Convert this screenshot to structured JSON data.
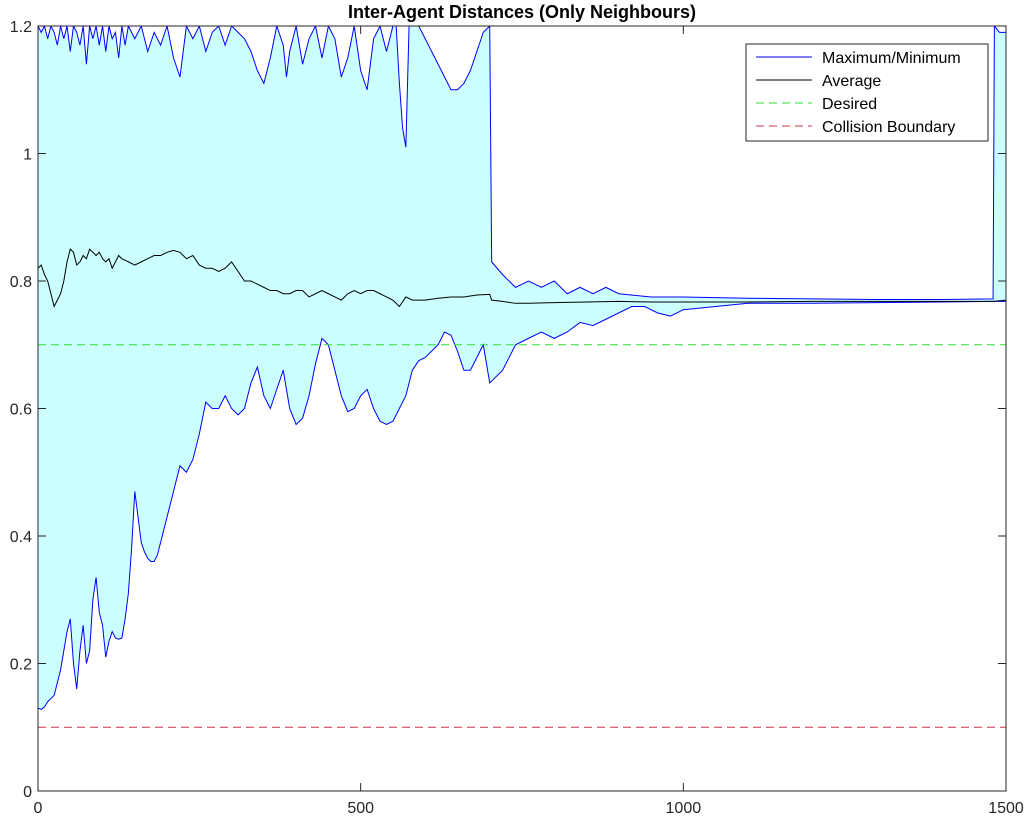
{
  "chart_data": {
    "type": "area",
    "title": "Inter-Agent Distances (Only Neighbours)",
    "xlabel": "",
    "ylabel": "",
    "xlim": [
      0,
      1500
    ],
    "ylim": [
      0,
      1.2
    ],
    "xticks": [
      0,
      500,
      1000,
      1500
    ],
    "yticks": [
      0,
      0.2,
      0.4,
      0.6,
      0.8,
      1,
      1.2
    ],
    "xtick_labels": [
      "0",
      "500",
      "1000",
      "1500"
    ],
    "ytick_labels": [
      "0",
      "0.2",
      "0.4",
      "0.6",
      "0.8",
      "1",
      "1.2"
    ],
    "grid": false,
    "legend_position": "top-right",
    "colors": {
      "band_fill": "#ccffff",
      "max_min": "#0000ff",
      "average": "#000000",
      "desired": "#33dd33",
      "collision": "#cc3344"
    },
    "series": [
      {
        "name": "Maximum/Minimum",
        "kind": "band",
        "upper": {
          "x": [
            0,
            5,
            10,
            15,
            20,
            25,
            30,
            35,
            40,
            45,
            50,
            55,
            60,
            65,
            70,
            75,
            80,
            85,
            90,
            95,
            100,
            105,
            110,
            115,
            120,
            125,
            130,
            135,
            140,
            150,
            160,
            170,
            180,
            190,
            200,
            210,
            220,
            230,
            240,
            250,
            260,
            270,
            280,
            290,
            300,
            310,
            320,
            330,
            340,
            350,
            360,
            370,
            380,
            385,
            390,
            400,
            410,
            420,
            430,
            440,
            450,
            460,
            470,
            480,
            490,
            500,
            510,
            520,
            530,
            540,
            550,
            555,
            560,
            565,
            570,
            575,
            580,
            590,
            600,
            610,
            620,
            630,
            640,
            650,
            660,
            670,
            680,
            690,
            700,
            703,
            720,
            740,
            760,
            780,
            800,
            820,
            840,
            860,
            880,
            900,
            950,
            1000,
            1050,
            1100,
            1200,
            1300,
            1400,
            1480,
            1482,
            1490,
            1500
          ],
          "y": [
            1.2,
            1.19,
            1.2,
            1.18,
            1.2,
            1.19,
            1.17,
            1.2,
            1.18,
            1.2,
            1.16,
            1.2,
            1.19,
            1.17,
            1.2,
            1.14,
            1.2,
            1.18,
            1.2,
            1.17,
            1.2,
            1.16,
            1.2,
            1.18,
            1.19,
            1.15,
            1.2,
            1.17,
            1.2,
            1.18,
            1.2,
            1.16,
            1.19,
            1.17,
            1.2,
            1.15,
            1.12,
            1.2,
            1.18,
            1.2,
            1.16,
            1.19,
            1.2,
            1.17,
            1.2,
            1.19,
            1.18,
            1.16,
            1.13,
            1.11,
            1.15,
            1.2,
            1.17,
            1.12,
            1.16,
            1.2,
            1.14,
            1.18,
            1.2,
            1.15,
            1.2,
            1.18,
            1.12,
            1.15,
            1.2,
            1.13,
            1.1,
            1.18,
            1.2,
            1.16,
            1.2,
            1.2,
            1.11,
            1.04,
            1.01,
            1.2,
            1.2,
            1.2,
            1.18,
            1.16,
            1.14,
            1.12,
            1.1,
            1.1,
            1.11,
            1.13,
            1.16,
            1.19,
            1.2,
            0.83,
            0.81,
            0.79,
            0.8,
            0.79,
            0.8,
            0.78,
            0.79,
            0.78,
            0.79,
            0.78,
            0.775,
            0.775,
            0.774,
            0.773,
            0.772,
            0.771,
            0.771,
            0.772,
            1.2,
            1.19,
            1.19
          ]
        },
        "lower": {
          "x": [
            0,
            5,
            10,
            15,
            20,
            25,
            30,
            35,
            40,
            45,
            50,
            55,
            60,
            65,
            70,
            75,
            80,
            85,
            90,
            95,
            100,
            105,
            110,
            115,
            120,
            125,
            130,
            135,
            140,
            145,
            150,
            155,
            160,
            165,
            170,
            175,
            180,
            185,
            190,
            195,
            200,
            210,
            220,
            230,
            240,
            250,
            260,
            270,
            280,
            290,
            300,
            310,
            320,
            330,
            340,
            350,
            360,
            370,
            380,
            390,
            400,
            410,
            420,
            430,
            440,
            450,
            460,
            470,
            480,
            490,
            500,
            510,
            520,
            530,
            540,
            550,
            560,
            570,
            580,
            590,
            600,
            610,
            620,
            630,
            640,
            650,
            660,
            670,
            680,
            690,
            700,
            720,
            740,
            760,
            780,
            800,
            820,
            840,
            860,
            880,
            900,
            920,
            940,
            960,
            980,
            1000,
            1050,
            1100,
            1200,
            1300,
            1400,
            1480,
            1500
          ],
          "y": [
            0.13,
            0.128,
            0.132,
            0.14,
            0.145,
            0.15,
            0.17,
            0.19,
            0.22,
            0.25,
            0.27,
            0.2,
            0.16,
            0.22,
            0.26,
            0.2,
            0.22,
            0.3,
            0.335,
            0.28,
            0.26,
            0.21,
            0.235,
            0.25,
            0.24,
            0.238,
            0.24,
            0.27,
            0.31,
            0.38,
            0.47,
            0.43,
            0.39,
            0.375,
            0.365,
            0.36,
            0.36,
            0.37,
            0.39,
            0.41,
            0.43,
            0.47,
            0.51,
            0.5,
            0.52,
            0.56,
            0.61,
            0.6,
            0.6,
            0.62,
            0.6,
            0.59,
            0.6,
            0.64,
            0.665,
            0.62,
            0.6,
            0.63,
            0.66,
            0.6,
            0.575,
            0.585,
            0.62,
            0.67,
            0.71,
            0.7,
            0.66,
            0.62,
            0.595,
            0.6,
            0.62,
            0.63,
            0.6,
            0.58,
            0.575,
            0.58,
            0.6,
            0.62,
            0.66,
            0.675,
            0.68,
            0.69,
            0.7,
            0.72,
            0.715,
            0.69,
            0.66,
            0.66,
            0.68,
            0.7,
            0.64,
            0.66,
            0.7,
            0.71,
            0.72,
            0.71,
            0.72,
            0.735,
            0.73,
            0.74,
            0.75,
            0.76,
            0.76,
            0.75,
            0.745,
            0.755,
            0.76,
            0.765,
            0.765,
            0.766,
            0.767,
            0.768,
            0.768
          ]
        }
      },
      {
        "name": "Average",
        "kind": "line",
        "x": [
          0,
          5,
          10,
          15,
          20,
          25,
          30,
          35,
          40,
          45,
          50,
          55,
          60,
          65,
          70,
          75,
          80,
          85,
          90,
          95,
          100,
          105,
          110,
          115,
          120,
          125,
          130,
          140,
          150,
          160,
          170,
          180,
          190,
          200,
          210,
          220,
          230,
          240,
          250,
          260,
          270,
          280,
          290,
          300,
          310,
          320,
          330,
          340,
          350,
          360,
          370,
          380,
          390,
          400,
          410,
          420,
          430,
          440,
          450,
          460,
          470,
          480,
          490,
          500,
          510,
          520,
          530,
          540,
          550,
          560,
          570,
          580,
          600,
          620,
          640,
          660,
          680,
          700,
          703,
          720,
          740,
          760,
          800,
          850,
          900,
          950,
          1000,
          1100,
          1200,
          1300,
          1400,
          1480,
          1500
        ],
        "y": [
          0.82,
          0.825,
          0.81,
          0.8,
          0.78,
          0.76,
          0.77,
          0.78,
          0.8,
          0.83,
          0.85,
          0.845,
          0.825,
          0.83,
          0.84,
          0.835,
          0.85,
          0.845,
          0.84,
          0.845,
          0.835,
          0.83,
          0.835,
          0.82,
          0.83,
          0.84,
          0.835,
          0.83,
          0.825,
          0.83,
          0.835,
          0.84,
          0.84,
          0.845,
          0.848,
          0.845,
          0.835,
          0.84,
          0.825,
          0.82,
          0.82,
          0.815,
          0.82,
          0.83,
          0.815,
          0.8,
          0.8,
          0.795,
          0.79,
          0.785,
          0.785,
          0.78,
          0.78,
          0.785,
          0.785,
          0.775,
          0.78,
          0.785,
          0.78,
          0.775,
          0.77,
          0.78,
          0.785,
          0.78,
          0.785,
          0.785,
          0.78,
          0.775,
          0.77,
          0.76,
          0.775,
          0.77,
          0.77,
          0.773,
          0.775,
          0.775,
          0.778,
          0.779,
          0.77,
          0.768,
          0.765,
          0.765,
          0.766,
          0.767,
          0.768,
          0.767,
          0.767,
          0.767,
          0.768,
          0.768,
          0.768,
          0.768,
          0.77
        ]
      },
      {
        "name": "Desired",
        "kind": "hline",
        "y": 0.7
      },
      {
        "name": "Collision Boundary",
        "kind": "hline",
        "y": 0.1
      }
    ]
  }
}
